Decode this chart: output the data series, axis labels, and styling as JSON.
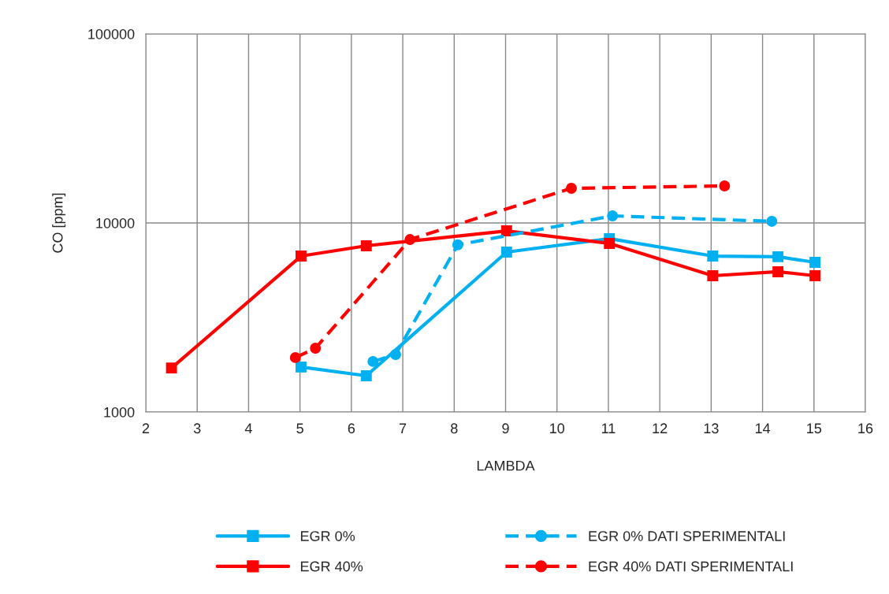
{
  "chart_data": {
    "type": "line",
    "xlabel": "LAMBDA",
    "ylabel": "CO [ppm]",
    "log": "y",
    "grid": true,
    "legend": "bottom",
    "xlim": [
      2,
      16
    ],
    "xticks": [
      2,
      3,
      4,
      5,
      6,
      7,
      8,
      9,
      10,
      11,
      12,
      13,
      14,
      15,
      16
    ],
    "ylim": [
      1000,
      100000
    ],
    "yticks": [
      1000,
      10000,
      100000
    ],
    "series": [
      {
        "name": "EGR 0%",
        "color": "#00b0f0",
        "marker": "square",
        "line_style": "solid",
        "x": [
          5.02,
          6.29,
          9.02,
          11.02,
          13.03,
          14.3,
          15.02
        ],
        "values": [
          1730,
          1555,
          7010,
          8260,
          6680,
          6630,
          6190
        ]
      },
      {
        "name": "EGR 40%",
        "color": "#ff0000",
        "marker": "square",
        "line_style": "solid",
        "x": [
          2.5,
          5.02,
          6.29,
          9.02,
          11.02,
          13.03,
          14.3,
          15.02
        ],
        "values": [
          1710,
          6680,
          7570,
          9080,
          7790,
          5260,
          5520,
          5260
        ]
      },
      {
        "name": "EGR 0% DATI SPERIMENTALI",
        "color": "#00b0f0",
        "marker": "circle",
        "line_style": "dashed",
        "x": [
          6.42,
          6.86,
          8.07,
          11.08,
          14.18
        ],
        "values": [
          1850,
          2015,
          7660,
          10900,
          10200
        ]
      },
      {
        "name": "EGR 40% DATI SPERIMENTALI",
        "color": "#ff0000",
        "marker": "circle",
        "line_style": "dashed",
        "x": [
          4.91,
          5.3,
          7.14,
          10.28,
          13.26
        ],
        "values": [
          1940,
          2175,
          8170,
          15250,
          15700
        ]
      }
    ]
  }
}
